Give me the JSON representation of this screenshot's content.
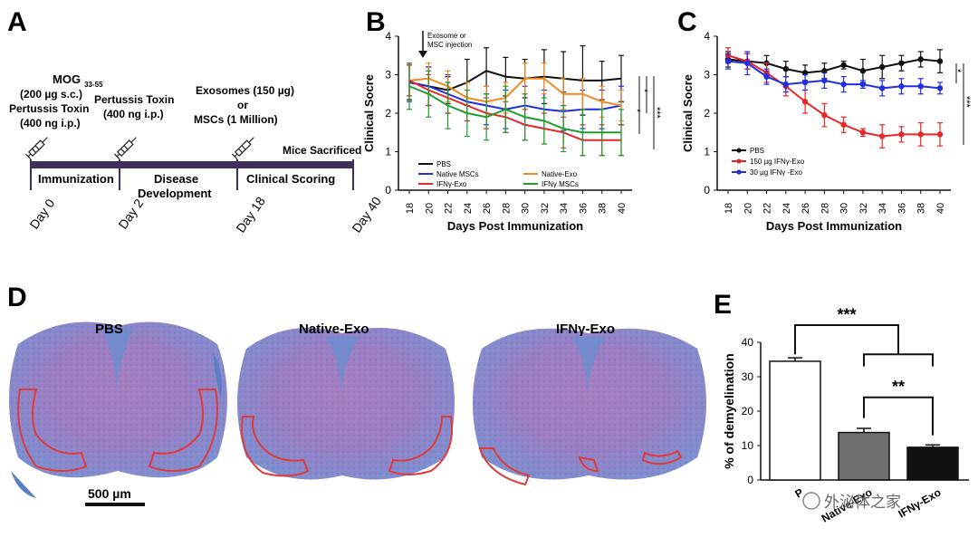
{
  "panels": {
    "A": {
      "letter": "A",
      "mog": "MOG",
      "mog_sub": "33-55",
      "mog_dose": "(200 µg s.c.)",
      "ptx1_title": "Pertussis Toxin",
      "ptx1_dose": "(400 ng i.p.)",
      "ptx2_title": "Pertussis Toxin",
      "ptx2_dose": "(400 ng i.p.)",
      "exo_line1": "Exosomes (150 µg)",
      "exo_line2": "or",
      "exo_line3": "MSCs (1 Million)",
      "sacrificed": "Mice Sacrificed",
      "phase_immunization": "Immunization",
      "phase_disease_1": "Disease",
      "phase_disease_2": "Development",
      "phase_clinical": "Clinical Scoring",
      "days": [
        "Day 0",
        "Day 2",
        "Day 18",
        "Day 40"
      ]
    },
    "D": {
      "letter": "D",
      "titles": [
        "PBS",
        "Native-Exo",
        "IFNγ-Exo"
      ],
      "scale_bar": "500 µm"
    },
    "watermark": "外泌体之家"
  },
  "chart_data": [
    {
      "panel": "B",
      "type": "line",
      "xlabel": "Days Post Immunization",
      "ylabel": "Clinical Socre",
      "x": [
        18,
        20,
        22,
        24,
        26,
        28,
        30,
        32,
        34,
        36,
        38,
        40
      ],
      "ylim": [
        0,
        4
      ],
      "yticks": [
        0,
        1,
        2,
        3,
        4
      ],
      "annotation": "Exosome or MSC injection",
      "series": [
        {
          "name": "PBS",
          "color": "#111111",
          "values": [
            2.8,
            2.7,
            2.6,
            2.8,
            3.1,
            2.95,
            2.9,
            2.95,
            2.9,
            2.85,
            2.85,
            2.9
          ],
          "err": [
            0.45,
            0.5,
            0.35,
            0.6,
            0.6,
            0.5,
            0.5,
            0.7,
            0.7,
            0.9,
            0.5,
            0.6
          ]
        },
        {
          "name": "Native MSCs",
          "color": "#1f2ee0",
          "values": [
            2.8,
            2.7,
            2.5,
            2.3,
            2.2,
            2.1,
            2.2,
            2.1,
            2.05,
            2.1,
            2.1,
            2.2
          ],
          "err": [
            0.5,
            0.5,
            0.5,
            0.5,
            0.5,
            0.5,
            0.5,
            0.5,
            0.5,
            0.5,
            0.5,
            0.5
          ]
        },
        {
          "name": "Native-Exo",
          "color": "#f08a1c",
          "values": [
            2.85,
            2.9,
            2.7,
            2.4,
            2.3,
            2.4,
            2.9,
            2.9,
            2.5,
            2.5,
            2.3,
            2.2
          ],
          "err": [
            0.4,
            0.4,
            0.4,
            0.4,
            0.4,
            0.4,
            0.4,
            0.4,
            0.4,
            0.4,
            0.4,
            0.4
          ]
        },
        {
          "name": "IFNγ-Exo",
          "color": "#e8262a",
          "values": [
            2.85,
            2.6,
            2.4,
            2.2,
            2.0,
            1.9,
            1.7,
            1.6,
            1.5,
            1.3,
            1.3,
            1.3
          ],
          "err": [
            0.4,
            0.4,
            0.4,
            0.4,
            0.4,
            0.4,
            0.4,
            0.4,
            0.4,
            0.4,
            0.4,
            0.4
          ]
        },
        {
          "name": "IFNγ MSCs",
          "color": "#1e9e2c",
          "values": [
            2.7,
            2.5,
            2.2,
            2.0,
            1.9,
            2.1,
            1.9,
            1.8,
            1.6,
            1.5,
            1.5,
            1.5
          ],
          "err": [
            0.6,
            0.6,
            0.6,
            0.6,
            0.6,
            0.6,
            0.6,
            0.6,
            0.6,
            0.6,
            0.6,
            0.6
          ]
        }
      ],
      "significance": [
        "*",
        "*",
        "***"
      ]
    },
    {
      "panel": "C",
      "type": "line",
      "xlabel": "Days Post Immunization",
      "ylabel": "Clinical Socre",
      "x": [
        18,
        20,
        22,
        24,
        26,
        28,
        30,
        32,
        34,
        36,
        38,
        40
      ],
      "ylim": [
        0,
        4
      ],
      "yticks": [
        0,
        1,
        2,
        3,
        4
      ],
      "series": [
        {
          "name": "PBS",
          "color": "#111111",
          "values": [
            3.4,
            3.35,
            3.3,
            3.15,
            3.05,
            3.1,
            3.25,
            3.1,
            3.2,
            3.3,
            3.4,
            3.35
          ],
          "err": [
            0.2,
            0.2,
            0.2,
            0.2,
            0.2,
            0.2,
            0.1,
            0.3,
            0.3,
            0.2,
            0.2,
            0.3
          ]
        },
        {
          "name": "150 µg IFNγ-Exo",
          "color": "#e8262a",
          "values": [
            3.5,
            3.35,
            3.05,
            2.7,
            2.3,
            1.95,
            1.7,
            1.5,
            1.4,
            1.45,
            1.45,
            1.45
          ],
          "err": [
            0.2,
            0.2,
            0.25,
            0.25,
            0.3,
            0.3,
            0.2,
            0.1,
            0.3,
            0.2,
            0.3,
            0.3
          ]
        },
        {
          "name": "30 µg IFNγ -Exo",
          "color": "#1f2ee0",
          "values": [
            3.35,
            3.3,
            2.95,
            2.75,
            2.8,
            2.85,
            2.75,
            2.75,
            2.65,
            2.7,
            2.7,
            2.65
          ],
          "err": [
            0.2,
            0.3,
            0.2,
            0.2,
            0.2,
            0.2,
            0.2,
            0.1,
            0.2,
            0.2,
            0.2,
            0.15
          ]
        }
      ],
      "significance": [
        "*",
        "***"
      ]
    },
    {
      "panel": "E",
      "type": "bar",
      "ylabel": "% of demyelination",
      "categories": [
        "PBS",
        "Native-Exo",
        "IFNγ-Exo"
      ],
      "tick_labels": [
        "P",
        "Native-Exo",
        "IFNγ-Exo"
      ],
      "values": [
        34.5,
        13.8,
        9.5
      ],
      "err": [
        1.0,
        1.2,
        0.7
      ],
      "colors": [
        "#ffffff",
        "#6f6f6f",
        "#111111"
      ],
      "ylim": [
        0,
        40
      ],
      "yticks": [
        0,
        10,
        20,
        30,
        40
      ],
      "significance": [
        "***",
        "**"
      ]
    }
  ],
  "chart_titles": {
    "B": "B",
    "C": "C",
    "E": "E"
  }
}
